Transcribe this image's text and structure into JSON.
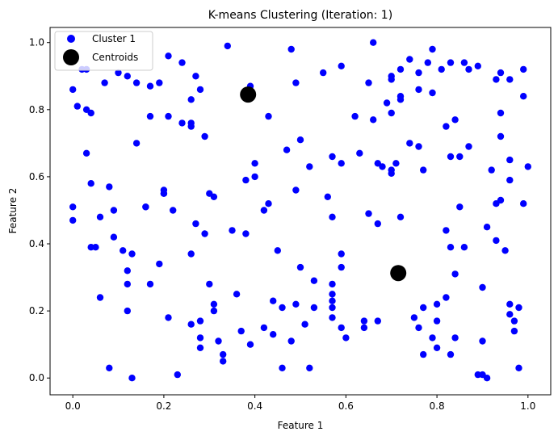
{
  "chart_data": {
    "type": "scatter",
    "title": "K-means Clustering (Iteration: 1)",
    "xlabel": "Feature 1",
    "ylabel": "Feature 2",
    "xlim": [
      -0.05,
      1.05
    ],
    "ylim": [
      -0.05,
      1.045
    ],
    "xticks": [
      0.0,
      0.2,
      0.4,
      0.6,
      0.8,
      1.0
    ],
    "yticks": [
      0.0,
      0.2,
      0.4,
      0.6,
      0.8,
      1.0
    ],
    "xtick_labels": [
      "0.0",
      "0.2",
      "0.4",
      "0.6",
      "0.8",
      "1.0"
    ],
    "ytick_labels": [
      "0.0",
      "0.2",
      "0.4",
      "0.6",
      "0.8",
      "1.0"
    ],
    "grid": false,
    "legend_position": "top-left",
    "series": [
      {
        "name": "Cluster 1",
        "color": "#0000ff",
        "marker": "circle",
        "points": [
          [
            0.0,
            0.86
          ],
          [
            0.01,
            0.81
          ],
          [
            0.02,
            0.92
          ],
          [
            0.03,
            0.92
          ],
          [
            0.03,
            0.8
          ],
          [
            0.04,
            0.79
          ],
          [
            0.03,
            0.67
          ],
          [
            0.04,
            0.58
          ],
          [
            0.07,
            0.88
          ],
          [
            0.1,
            0.91
          ],
          [
            0.12,
            0.9
          ],
          [
            0.14,
            0.88
          ],
          [
            0.17,
            0.87
          ],
          [
            0.19,
            0.88
          ],
          [
            0.21,
            0.96
          ],
          [
            0.24,
            0.94
          ],
          [
            0.27,
            0.9
          ],
          [
            0.28,
            0.86
          ],
          [
            0.26,
            0.83
          ],
          [
            0.17,
            0.78
          ],
          [
            0.21,
            0.78
          ],
          [
            0.24,
            0.76
          ],
          [
            0.26,
            0.76
          ],
          [
            0.26,
            0.75
          ],
          [
            0.29,
            0.72
          ],
          [
            0.34,
            0.99
          ],
          [
            0.39,
            0.87
          ],
          [
            0.43,
            0.78
          ],
          [
            0.48,
            0.98
          ],
          [
            0.49,
            0.88
          ],
          [
            0.55,
            0.91
          ],
          [
            0.59,
            0.93
          ],
          [
            0.66,
            1.0
          ],
          [
            0.65,
            0.88
          ],
          [
            0.62,
            0.78
          ],
          [
            0.66,
            0.77
          ],
          [
            0.69,
            0.82
          ],
          [
            0.7,
            0.79
          ],
          [
            0.7,
            0.9
          ],
          [
            0.7,
            0.89
          ],
          [
            0.72,
            0.92
          ],
          [
            0.72,
            0.84
          ],
          [
            0.72,
            0.83
          ],
          [
            0.74,
            0.95
          ],
          [
            0.76,
            0.91
          ],
          [
            0.76,
            0.86
          ],
          [
            0.78,
            0.94
          ],
          [
            0.79,
            0.98
          ],
          [
            0.79,
            0.85
          ],
          [
            0.81,
            0.92
          ],
          [
            0.83,
            0.94
          ],
          [
            0.82,
            0.75
          ],
          [
            0.84,
            0.77
          ],
          [
            0.86,
            0.94
          ],
          [
            0.87,
            0.92
          ],
          [
            0.89,
            0.93
          ],
          [
            0.93,
            0.89
          ],
          [
            0.94,
            0.91
          ],
          [
            0.96,
            0.89
          ],
          [
            0.99,
            0.92
          ],
          [
            0.99,
            0.84
          ],
          [
            0.94,
            0.79
          ],
          [
            0.94,
            0.72
          ],
          [
            0.0,
            0.51
          ],
          [
            0.0,
            0.47
          ],
          [
            0.06,
            0.48
          ],
          [
            0.08,
            0.57
          ],
          [
            0.09,
            0.5
          ],
          [
            0.14,
            0.7
          ],
          [
            0.16,
            0.51
          ],
          [
            0.16,
            0.51
          ],
          [
            0.2,
            0.56
          ],
          [
            0.2,
            0.55
          ],
          [
            0.2,
            0.55
          ],
          [
            0.22,
            0.5
          ],
          [
            0.27,
            0.46
          ],
          [
            0.29,
            0.43
          ],
          [
            0.3,
            0.55
          ],
          [
            0.31,
            0.54
          ],
          [
            0.35,
            0.44
          ],
          [
            0.38,
            0.43
          ],
          [
            0.38,
            0.59
          ],
          [
            0.4,
            0.6
          ],
          [
            0.4,
            0.64
          ],
          [
            0.42,
            0.5
          ],
          [
            0.43,
            0.52
          ],
          [
            0.47,
            0.68
          ],
          [
            0.49,
            0.56
          ],
          [
            0.5,
            0.71
          ],
          [
            0.52,
            0.63
          ],
          [
            0.56,
            0.54
          ],
          [
            0.57,
            0.66
          ],
          [
            0.57,
            0.48
          ],
          [
            0.59,
            0.64
          ],
          [
            0.63,
            0.67
          ],
          [
            0.65,
            0.49
          ],
          [
            0.67,
            0.64
          ],
          [
            0.68,
            0.63
          ],
          [
            0.67,
            0.46
          ],
          [
            0.7,
            0.61
          ],
          [
            0.7,
            0.62
          ],
          [
            0.71,
            0.64
          ],
          [
            0.72,
            0.48
          ],
          [
            0.74,
            0.7
          ],
          [
            0.76,
            0.69
          ],
          [
            0.77,
            0.62
          ],
          [
            0.83,
            0.66
          ],
          [
            0.85,
            0.66
          ],
          [
            0.87,
            0.69
          ],
          [
            0.85,
            0.51
          ],
          [
            0.92,
            0.62
          ],
          [
            0.94,
            0.53
          ],
          [
            0.93,
            0.52
          ],
          [
            0.96,
            0.65
          ],
          [
            0.96,
            0.59
          ],
          [
            0.99,
            0.52
          ],
          [
            1.0,
            0.63
          ],
          [
            0.04,
            0.39
          ],
          [
            0.05,
            0.39
          ],
          [
            0.06,
            0.24
          ],
          [
            0.09,
            0.42
          ],
          [
            0.11,
            0.38
          ],
          [
            0.12,
            0.28
          ],
          [
            0.12,
            0.32
          ],
          [
            0.13,
            0.37
          ],
          [
            0.12,
            0.2
          ],
          [
            0.08,
            0.03
          ],
          [
            0.13,
            0.0
          ],
          [
            0.17,
            0.28
          ],
          [
            0.19,
            0.34
          ],
          [
            0.21,
            0.18
          ],
          [
            0.23,
            0.01
          ],
          [
            0.26,
            0.37
          ],
          [
            0.26,
            0.16
          ],
          [
            0.28,
            0.09
          ],
          [
            0.28,
            0.12
          ],
          [
            0.28,
            0.17
          ],
          [
            0.3,
            0.28
          ],
          [
            0.31,
            0.2
          ],
          [
            0.31,
            0.22
          ],
          [
            0.32,
            0.11
          ],
          [
            0.33,
            0.05
          ],
          [
            0.33,
            0.07
          ],
          [
            0.36,
            0.25
          ],
          [
            0.37,
            0.14
          ],
          [
            0.39,
            0.1
          ],
          [
            0.42,
            0.15
          ],
          [
            0.44,
            0.23
          ],
          [
            0.44,
            0.13
          ],
          [
            0.45,
            0.38
          ],
          [
            0.46,
            0.21
          ],
          [
            0.46,
            0.03
          ],
          [
            0.48,
            0.11
          ],
          [
            0.49,
            0.22
          ],
          [
            0.5,
            0.33
          ],
          [
            0.51,
            0.16
          ],
          [
            0.52,
            0.03
          ],
          [
            0.53,
            0.21
          ],
          [
            0.53,
            0.29
          ],
          [
            0.57,
            0.28
          ],
          [
            0.57,
            0.25
          ],
          [
            0.57,
            0.23
          ],
          [
            0.57,
            0.21
          ],
          [
            0.57,
            0.18
          ],
          [
            0.59,
            0.33
          ],
          [
            0.59,
            0.37
          ],
          [
            0.59,
            0.15
          ],
          [
            0.6,
            0.12
          ],
          [
            0.64,
            0.15
          ],
          [
            0.64,
            0.17
          ],
          [
            0.67,
            0.17
          ],
          [
            0.75,
            0.18
          ],
          [
            0.77,
            0.07
          ],
          [
            0.76,
            0.15
          ],
          [
            0.77,
            0.21
          ],
          [
            0.79,
            0.12
          ],
          [
            0.8,
            0.09
          ],
          [
            0.8,
            0.17
          ],
          [
            0.8,
            0.22
          ],
          [
            0.82,
            0.44
          ],
          [
            0.82,
            0.24
          ],
          [
            0.83,
            0.07
          ],
          [
            0.83,
            0.39
          ],
          [
            0.84,
            0.31
          ],
          [
            0.86,
            0.39
          ],
          [
            0.84,
            0.12
          ],
          [
            0.89,
            0.01
          ],
          [
            0.9,
            0.01
          ],
          [
            0.9,
            0.27
          ],
          [
            0.9,
            0.11
          ],
          [
            0.91,
            0.45
          ],
          [
            0.91,
            0.0
          ],
          [
            0.93,
            0.41
          ],
          [
            0.95,
            0.38
          ],
          [
            0.96,
            0.22
          ],
          [
            0.96,
            0.19
          ],
          [
            0.97,
            0.17
          ],
          [
            0.97,
            0.14
          ],
          [
            0.98,
            0.21
          ],
          [
            0.98,
            0.03
          ]
        ]
      },
      {
        "name": "Centroids",
        "color": "#000000",
        "marker": "circle-large",
        "points": [
          [
            0.385,
            0.845
          ],
          [
            0.715,
            0.313
          ]
        ]
      }
    ]
  }
}
